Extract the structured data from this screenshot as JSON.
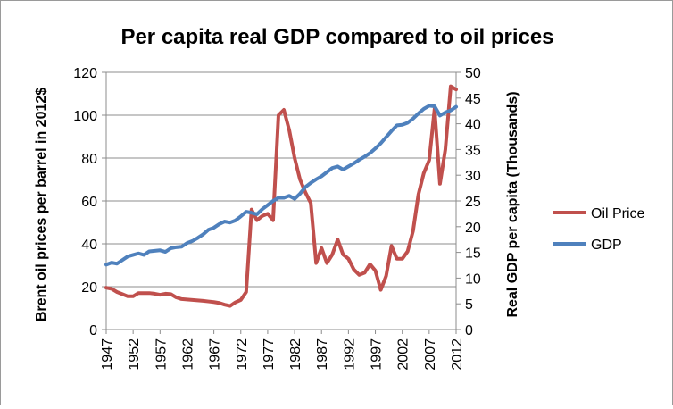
{
  "chart_data": {
    "type": "line",
    "title": "Per capita real GDP compared to oil prices",
    "ylabel_left": "Brent oil prices per barrel in 2012$",
    "ylabel_right": "Real GDP per capita (Thousands)",
    "ylim_left": [
      0,
      120
    ],
    "ylim_right": [
      0,
      50
    ],
    "yticks_left": [
      0,
      20,
      40,
      60,
      80,
      100,
      120
    ],
    "yticks_right": [
      0,
      5,
      10,
      15,
      20,
      25,
      30,
      35,
      40,
      45,
      50
    ],
    "xlim": [
      1947,
      2012
    ],
    "xticks": [
      1947,
      1952,
      1957,
      1962,
      1967,
      1972,
      1977,
      1982,
      1987,
      1992,
      1997,
      2002,
      2007,
      2012
    ],
    "legend_position": "right",
    "series": [
      {
        "name": "Oil Price",
        "axis": "left",
        "color": "#c0504d",
        "x": [
          1947,
          1948,
          1949,
          1950,
          1951,
          1952,
          1953,
          1954,
          1955,
          1956,
          1957,
          1958,
          1959,
          1960,
          1961,
          1962,
          1963,
          1964,
          1965,
          1966,
          1967,
          1968,
          1969,
          1970,
          1971,
          1972,
          1973,
          1974,
          1975,
          1976,
          1977,
          1978,
          1979,
          1980,
          1981,
          1982,
          1983,
          1984,
          1985,
          1986,
          1987,
          1988,
          1989,
          1990,
          1991,
          1992,
          1993,
          1994,
          1995,
          1996,
          1997,
          1998,
          1999,
          2000,
          2001,
          2002,
          2003,
          2004,
          2005,
          2006,
          2007,
          2008,
          2009,
          2010,
          2011,
          2012
        ],
        "values": [
          19.5,
          19,
          17.5,
          16.5,
          15.5,
          15.5,
          17,
          17,
          17,
          16.7,
          16.2,
          16.7,
          16.5,
          15,
          14.2,
          14,
          13.8,
          13.6,
          13.4,
          13.1,
          12.8,
          12.4,
          11.6,
          11,
          12.7,
          13.8,
          17.5,
          56,
          51,
          53,
          54,
          51,
          100,
          102.5,
          93,
          80,
          70,
          64,
          59,
          31,
          38,
          31,
          35,
          42,
          35,
          33,
          28,
          25.5,
          26.5,
          30.5,
          27.5,
          18.5,
          25,
          39,
          33,
          33,
          36.5,
          46,
          63,
          73,
          79,
          103,
          68,
          84,
          113.5,
          112
        ]
      },
      {
        "name": "GDP",
        "axis": "right",
        "color": "#4f81bd",
        "x": [
          1947,
          1948,
          1949,
          1950,
          1951,
          1952,
          1953,
          1954,
          1955,
          1956,
          1957,
          1958,
          1959,
          1960,
          1961,
          1962,
          1963,
          1964,
          1965,
          1966,
          1967,
          1968,
          1969,
          1970,
          1971,
          1972,
          1973,
          1974,
          1975,
          1976,
          1977,
          1978,
          1979,
          1980,
          1981,
          1982,
          1983,
          1984,
          1985,
          1986,
          1987,
          1988,
          1989,
          1990,
          1991,
          1992,
          1993,
          1994,
          1995,
          1996,
          1997,
          1998,
          1999,
          2000,
          2001,
          2002,
          2003,
          2004,
          2005,
          2006,
          2007,
          2008,
          2009,
          2010,
          2011,
          2012
        ],
        "values": [
          12.6,
          13,
          12.8,
          13.5,
          14.2,
          14.5,
          14.8,
          14.5,
          15.2,
          15.3,
          15.4,
          15.1,
          15.8,
          16,
          16.1,
          16.8,
          17.2,
          17.8,
          18.5,
          19.4,
          19.8,
          20.5,
          21,
          20.8,
          21.2,
          22,
          22.9,
          22.7,
          22.4,
          23.4,
          24.2,
          25,
          25.6,
          25.6,
          26,
          25.4,
          26.4,
          27.7,
          28.5,
          29.2,
          29.8,
          30.6,
          31.4,
          31.7,
          31.1,
          31.7,
          32.3,
          33,
          33.6,
          34.3,
          35.2,
          36.2,
          37.4,
          38.6,
          39.7,
          39.8,
          40.2,
          41,
          42,
          42.9,
          43.5,
          43.4,
          41.6,
          42.2,
          42.6,
          43.3
        ]
      }
    ]
  }
}
